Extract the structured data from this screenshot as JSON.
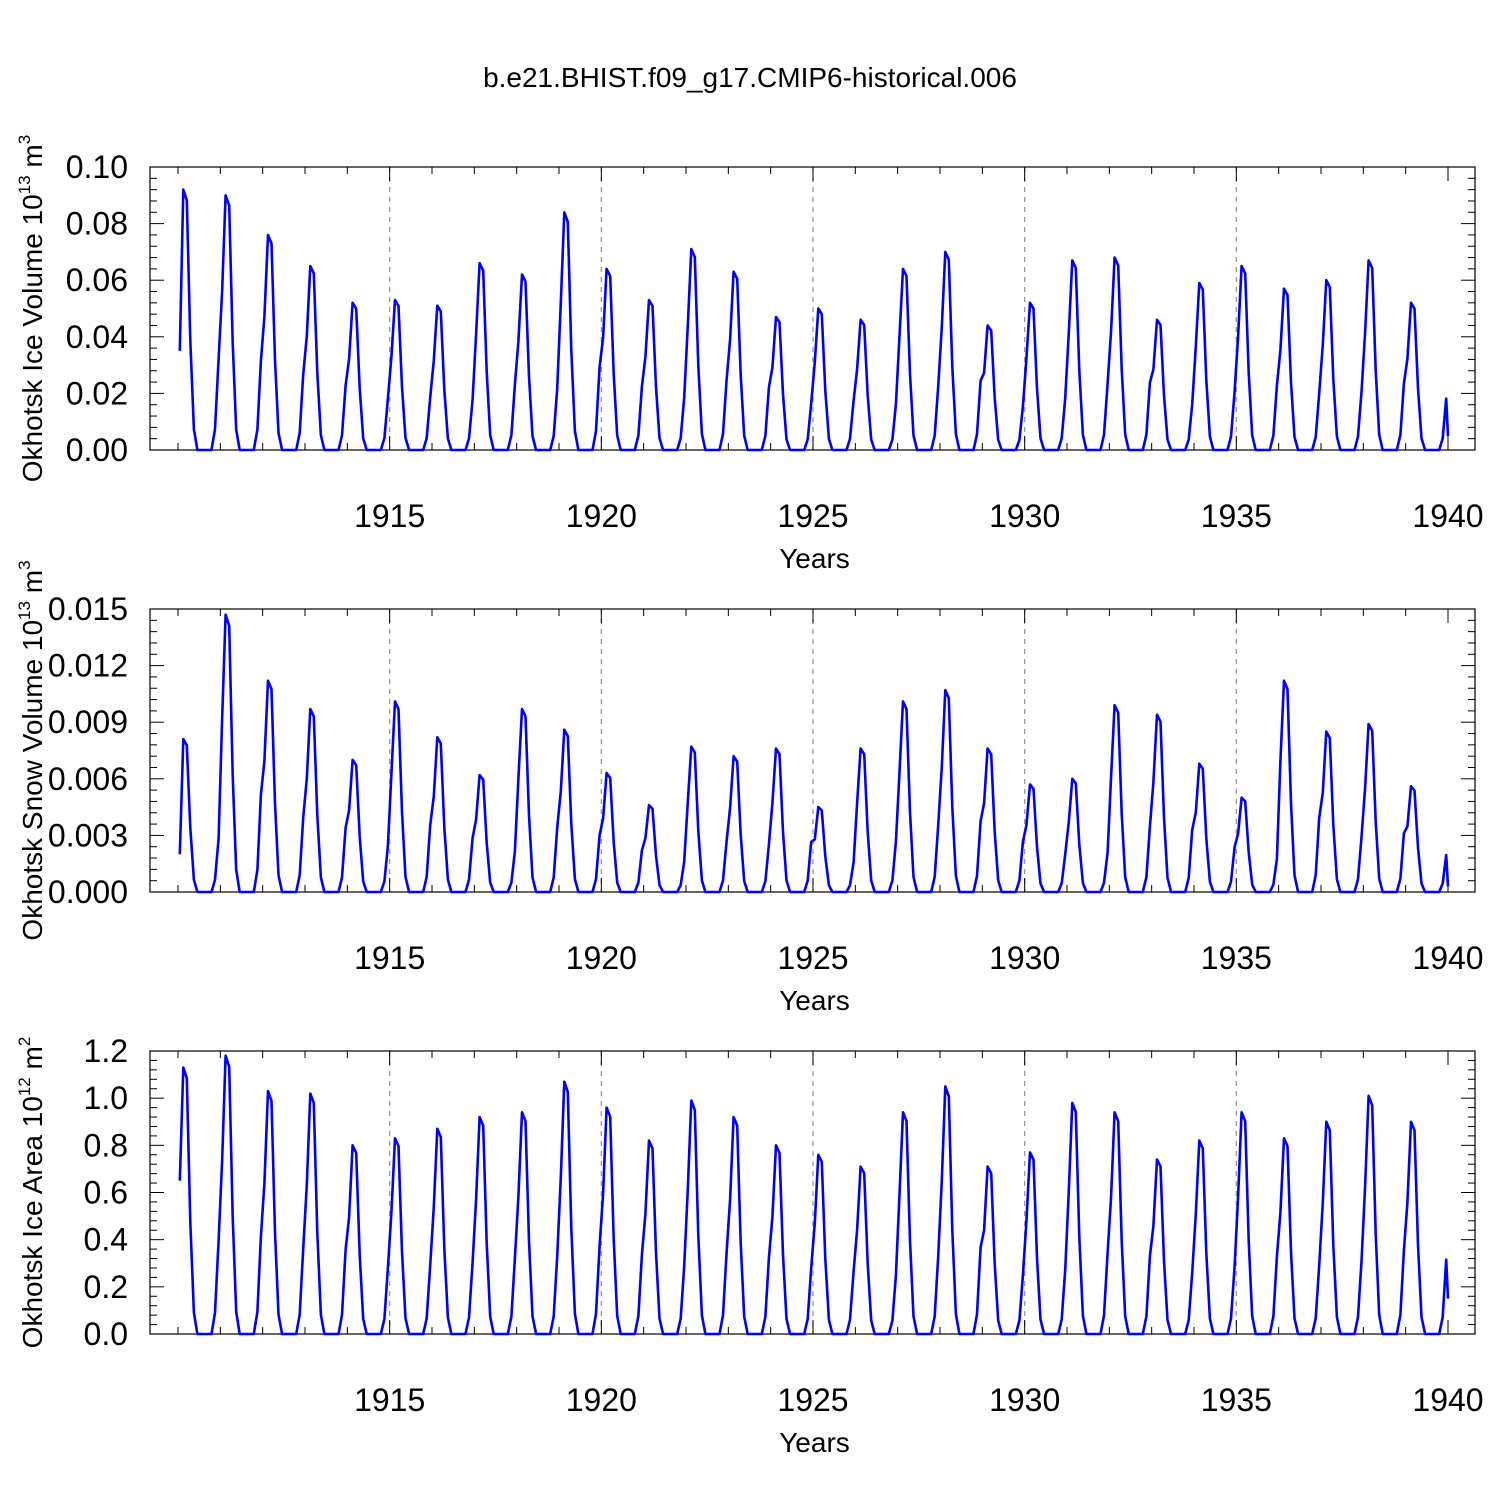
{
  "title": "b.e21.BHIST.f09_g17.CMIP6-historical.006",
  "colors": {
    "series": "#0000ff",
    "axis": "#000000",
    "gridline": "#999999"
  },
  "chart_data": [
    {
      "type": "line",
      "xlabel": "Years",
      "ylabel": {
        "text": "Okhotsk Ice Volume 10",
        "exp": "13",
        "unit": " m",
        "unit_exp": "3"
      },
      "xlim": [
        1910.0,
        1940.0
      ],
      "ylim": [
        0.0,
        0.1
      ],
      "x_ticks": [
        1915,
        1920,
        1925,
        1930,
        1935,
        1940
      ],
      "y_ticks": [
        "0.00",
        "0.02",
        "0.04",
        "0.06",
        "0.08",
        "0.10"
      ],
      "grid": "dashed vertical at labeled years",
      "series": [
        {
          "peaks": [
            0.092,
            0.09,
            0.076,
            0.065,
            0.052,
            0.053,
            0.051,
            0.066,
            0.062,
            0.084,
            0.064,
            0.053,
            0.071,
            0.063,
            0.047,
            0.05,
            0.046,
            0.064,
            0.07,
            0.044,
            0.052,
            0.067,
            0.068,
            0.046,
            0.059,
            0.065,
            0.057,
            0.06,
            0.067,
            0.052
          ],
          "first_value": 0.035,
          "last_value": 0.005
        }
      ]
    },
    {
      "type": "line",
      "xlabel": "Years",
      "ylabel": {
        "text": "Okhotsk Snow Volume 10",
        "exp": "13",
        "unit": " m",
        "unit_exp": "3"
      },
      "xlim": [
        1910.0,
        1940.0
      ],
      "ylim": [
        0.0,
        0.015
      ],
      "x_ticks": [
        1915,
        1920,
        1925,
        1930,
        1935,
        1940
      ],
      "y_ticks": [
        "0.000",
        "0.003",
        "0.006",
        "0.009",
        "0.012",
        "0.015"
      ],
      "grid": "dashed vertical at labeled years",
      "series": [
        {
          "peaks": [
            0.0081,
            0.0147,
            0.0112,
            0.0097,
            0.007,
            0.0101,
            0.0082,
            0.0062,
            0.0097,
            0.0086,
            0.0063,
            0.0046,
            0.0077,
            0.0072,
            0.0076,
            0.0045,
            0.0076,
            0.0101,
            0.0107,
            0.0076,
            0.0057,
            0.006,
            0.0099,
            0.0094,
            0.0068,
            0.005,
            0.0112,
            0.0085,
            0.0089,
            0.0056
          ],
          "first_value": 0.002,
          "last_value": 0.0003
        }
      ]
    },
    {
      "type": "line",
      "xlabel": "Years",
      "ylabel": {
        "text": "Okhotsk Ice Area 10",
        "exp": "12",
        "unit": " m",
        "unit_exp": "2"
      },
      "xlim": [
        1910.0,
        1940.0
      ],
      "ylim": [
        0.0,
        1.2
      ],
      "x_ticks": [
        1915,
        1920,
        1925,
        1930,
        1935,
        1940
      ],
      "y_ticks": [
        "0.0",
        "0.2",
        "0.4",
        "0.6",
        "0.8",
        "1.0",
        "1.2"
      ],
      "grid": "dashed vertical at labeled years",
      "series": [
        {
          "peaks": [
            1.13,
            1.18,
            1.03,
            1.02,
            0.8,
            0.83,
            0.87,
            0.92,
            0.94,
            1.07,
            0.96,
            0.82,
            0.99,
            0.92,
            0.8,
            0.76,
            0.71,
            0.94,
            1.05,
            0.71,
            0.77,
            0.98,
            0.94,
            0.74,
            0.82,
            0.94,
            0.83,
            0.9,
            1.01,
            0.9
          ],
          "first_value": 0.65,
          "last_value": 0.15
        }
      ]
    }
  ]
}
